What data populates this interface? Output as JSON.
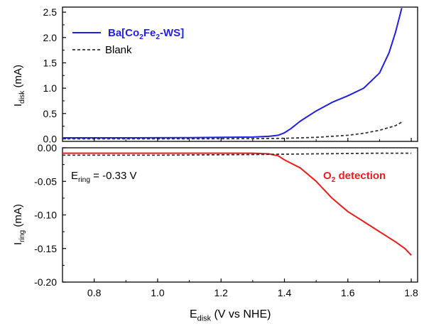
{
  "chart_data": [
    {
      "type": "line",
      "panel": "top",
      "xlabel": "E_disk (V vs NHE)",
      "ylabel": {
        "main": "I",
        "sub": "disk",
        "rest": " (mA)"
      },
      "xlim": [
        0.7,
        1.82
      ],
      "ylim": [
        -0.05,
        2.6
      ],
      "yticks": [
        0.0,
        0.5,
        1.0,
        1.5,
        2.0,
        2.5
      ],
      "ytick_labels": [
        "0.0",
        "0.5",
        "1.0",
        "1.5",
        "2.0",
        "2.5"
      ],
      "legend_position": "top-left",
      "series": [
        {
          "name": "Ba[Co2Fe2-WS]",
          "legend_parts": [
            {
              "t": "Ba[Co",
              "sub": false
            },
            {
              "t": "2",
              "sub": true
            },
            {
              "t": "Fe",
              "sub": false
            },
            {
              "t": "2",
              "sub": true
            },
            {
              "t": "-WS]",
              "sub": false
            }
          ],
          "color": "#1f1fe6",
          "style": "solid",
          "x": [
            0.7,
            0.9,
            1.1,
            1.2,
            1.3,
            1.35,
            1.38,
            1.4,
            1.42,
            1.45,
            1.5,
            1.55,
            1.6,
            1.65,
            1.7,
            1.73,
            1.75,
            1.77
          ],
          "y": [
            0.02,
            0.02,
            0.025,
            0.03,
            0.035,
            0.05,
            0.07,
            0.12,
            0.2,
            0.35,
            0.55,
            0.72,
            0.85,
            1.0,
            1.3,
            1.7,
            2.1,
            2.58
          ]
        },
        {
          "name": "Blank",
          "color": "#333333",
          "style": "dashed",
          "x": [
            0.7,
            0.9,
            1.1,
            1.3,
            1.4,
            1.5,
            1.6,
            1.65,
            1.7,
            1.75,
            1.77
          ],
          "y": [
            0.0,
            0.0,
            0.0,
            0.005,
            0.01,
            0.03,
            0.07,
            0.11,
            0.17,
            0.26,
            0.33
          ]
        }
      ]
    },
    {
      "type": "line",
      "panel": "bottom",
      "xlabel": {
        "main": "E",
        "sub": "disk",
        "rest": " (V vs NHE)"
      },
      "ylabel": {
        "main": "I",
        "sub": "ring",
        "rest": " (mA)"
      },
      "xlim": [
        0.7,
        1.82
      ],
      "ylim": [
        -0.2,
        0.0
      ],
      "xticks": [
        0.8,
        1.0,
        1.2,
        1.4,
        1.6,
        1.8
      ],
      "xtick_labels": [
        "0.8",
        "1.0",
        "1.2",
        "1.4",
        "1.6",
        "1.8"
      ],
      "yticks": [
        0.0,
        -0.05,
        -0.1,
        -0.15,
        -0.2
      ],
      "ytick_labels": [
        "0.00",
        "-0.05",
        "-0.10",
        "-0.15",
        "-0.20"
      ],
      "annotations": [
        {
          "name": "ering-annotation",
          "main": "E",
          "sub": "ring",
          "rest": " = -0.33 V",
          "color": "#000000"
        },
        {
          "name": "o2-detection-annotation",
          "main": "O",
          "sub": "2",
          "rest": " detection",
          "color": "#ee1c1c"
        }
      ],
      "series": [
        {
          "name": "O2 detection",
          "color": "#ee1c1c",
          "style": "solid",
          "x": [
            0.7,
            1.0,
            1.3,
            1.35,
            1.38,
            1.4,
            1.45,
            1.5,
            1.55,
            1.6,
            1.65,
            1.7,
            1.75,
            1.78,
            1.8
          ],
          "y": [
            -0.008,
            -0.008,
            -0.008,
            -0.009,
            -0.012,
            -0.018,
            -0.03,
            -0.05,
            -0.075,
            -0.095,
            -0.11,
            -0.125,
            -0.14,
            -0.15,
            -0.16
          ]
        },
        {
          "name": "Blank",
          "color": "#333333",
          "style": "dashed",
          "x": [
            0.7,
            1.0,
            1.3,
            1.5,
            1.7,
            1.8
          ],
          "y": [
            -0.011,
            -0.011,
            -0.01,
            -0.009,
            -0.008,
            -0.008
          ]
        }
      ]
    }
  ]
}
